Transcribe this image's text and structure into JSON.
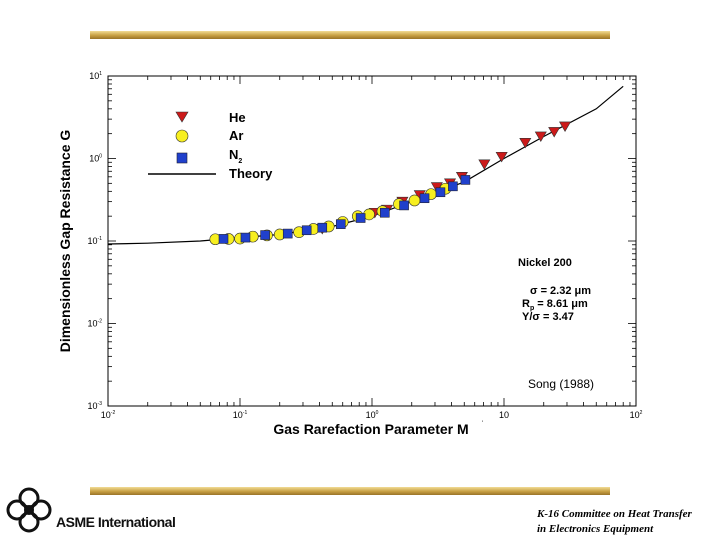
{
  "chart_data": {
    "type": "scatter",
    "xscale": "log",
    "yscale": "log",
    "xlim": [
      0.01,
      100
    ],
    "ylim": [
      0.001,
      10
    ],
    "xlabel": "Gas Rarefaction Parameter  M",
    "ylabel": "Dimensionless Gap Resistance  G",
    "x_ticks": [
      {
        "v": 0.01,
        "base": "10",
        "exp": "-2"
      },
      {
        "v": 0.1,
        "base": "10",
        "exp": "-1"
      },
      {
        "v": 1,
        "base": "10",
        "exp": "0"
      },
      {
        "v": 10,
        "base": "10",
        "exp": ""
      },
      {
        "v": 100,
        "base": "10",
        "exp": "2"
      }
    ],
    "y_ticks": [
      {
        "v": 10,
        "base": "10",
        "exp": "1"
      },
      {
        "v": 1,
        "base": "10",
        "exp": "0"
      },
      {
        "v": 0.1,
        "base": "10",
        "exp": "-1"
      },
      {
        "v": 0.01,
        "base": "10",
        "exp": "-2"
      },
      {
        "v": 0.001,
        "base": "10",
        "exp": "-3"
      }
    ],
    "series": [
      {
        "name": "He",
        "marker": "triangle-down",
        "color": "#cc1a1a",
        "points": [
          [
            0.42,
            0.14
          ],
          [
            1.05,
            0.22
          ],
          [
            1.3,
            0.24
          ],
          [
            1.7,
            0.3
          ],
          [
            2.3,
            0.36
          ],
          [
            3.1,
            0.45
          ],
          [
            3.9,
            0.5
          ],
          [
            4.8,
            0.6
          ],
          [
            7.1,
            0.85
          ],
          [
            9.6,
            1.05
          ],
          [
            14.5,
            1.55
          ],
          [
            19,
            1.85
          ],
          [
            24,
            2.1
          ],
          [
            29,
            2.45
          ]
        ]
      },
      {
        "name": "Ar",
        "marker": "circle",
        "color": "#f7ef20",
        "points": [
          [
            0.065,
            0.105
          ],
          [
            0.082,
            0.106
          ],
          [
            0.1,
            0.107
          ],
          [
            0.125,
            0.113
          ],
          [
            0.16,
            0.117
          ],
          [
            0.2,
            0.12
          ],
          [
            0.28,
            0.128
          ],
          [
            0.36,
            0.14
          ],
          [
            0.47,
            0.15
          ],
          [
            0.6,
            0.17
          ],
          [
            0.78,
            0.2
          ],
          [
            0.95,
            0.21
          ],
          [
            1.2,
            0.23
          ],
          [
            1.6,
            0.28
          ],
          [
            2.1,
            0.31
          ],
          [
            2.8,
            0.37
          ],
          [
            3.6,
            0.43
          ]
        ]
      },
      {
        "name": "N2",
        "label": "N",
        "label_sub": "2",
        "marker": "square",
        "color": "#2040cc",
        "points": [
          [
            0.075,
            0.106
          ],
          [
            0.11,
            0.11
          ],
          [
            0.155,
            0.118
          ],
          [
            0.23,
            0.123
          ],
          [
            0.32,
            0.135
          ],
          [
            0.42,
            0.145
          ],
          [
            0.58,
            0.16
          ],
          [
            0.82,
            0.19
          ],
          [
            1.25,
            0.22
          ],
          [
            1.75,
            0.27
          ],
          [
            2.5,
            0.33
          ],
          [
            3.3,
            0.39
          ],
          [
            4.1,
            0.46
          ],
          [
            5.1,
            0.55
          ]
        ]
      },
      {
        "name": "Theory",
        "type": "line",
        "color": "#000000",
        "points": [
          [
            0.01,
            0.092
          ],
          [
            0.02,
            0.094
          ],
          [
            0.05,
            0.1
          ],
          [
            0.1,
            0.11
          ],
          [
            0.2,
            0.12
          ],
          [
            0.5,
            0.15
          ],
          [
            1,
            0.2
          ],
          [
            2,
            0.3
          ],
          [
            5,
            0.52
          ],
          [
            10,
            1.0
          ],
          [
            20,
            1.85
          ],
          [
            50,
            4.0
          ],
          [
            80,
            7.5
          ]
        ]
      }
    ],
    "annotations": {
      "material": "Nickel 200",
      "sigma": "σ = 2.32 μm",
      "rp_main": "R",
      "rp_sub": "p",
      "rp_rest": " = 8.61 μm",
      "yratio": "Y/σ = 3.47",
      "source": "Song (1988)"
    },
    "legend_position": "top-left"
  },
  "footer": {
    "org": "ASME International",
    "committee_line1": "K-16 Committee on Heat Transfer",
    "committee_line2": "in Electronics Equipment"
  }
}
